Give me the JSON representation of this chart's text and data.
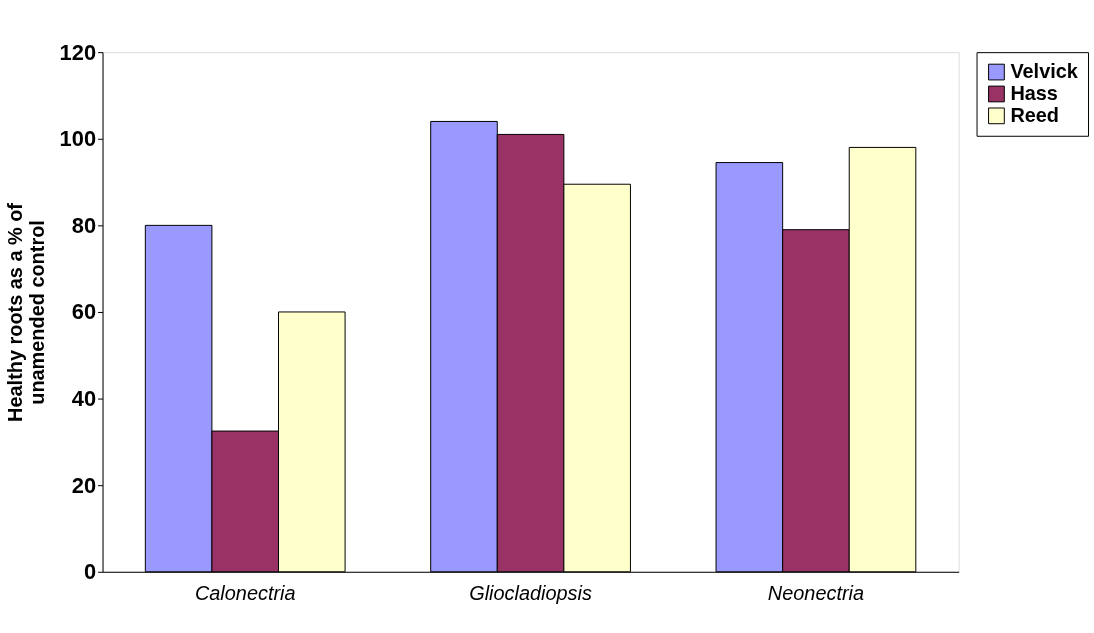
{
  "chart_data": {
    "type": "bar",
    "ylabel": "Healthy roots as a % of unamended control",
    "categories": [
      "Calonectria",
      "Gliocladiopsis",
      "Neonectria"
    ],
    "series": [
      {
        "name": "Velvick",
        "color": "#9999ff",
        "values": [
          80,
          104,
          94.5
        ]
      },
      {
        "name": "Hass",
        "color": "#993366",
        "values": [
          32.5,
          101,
          79
        ]
      },
      {
        "name": "Reed",
        "color": "#ffffcc",
        "values": [
          60,
          89.5,
          98
        ]
      }
    ],
    "ylim": [
      0,
      120
    ],
    "yticks": [
      0,
      20,
      40,
      60,
      80,
      100,
      120
    ],
    "grid": false,
    "legend": "right"
  }
}
